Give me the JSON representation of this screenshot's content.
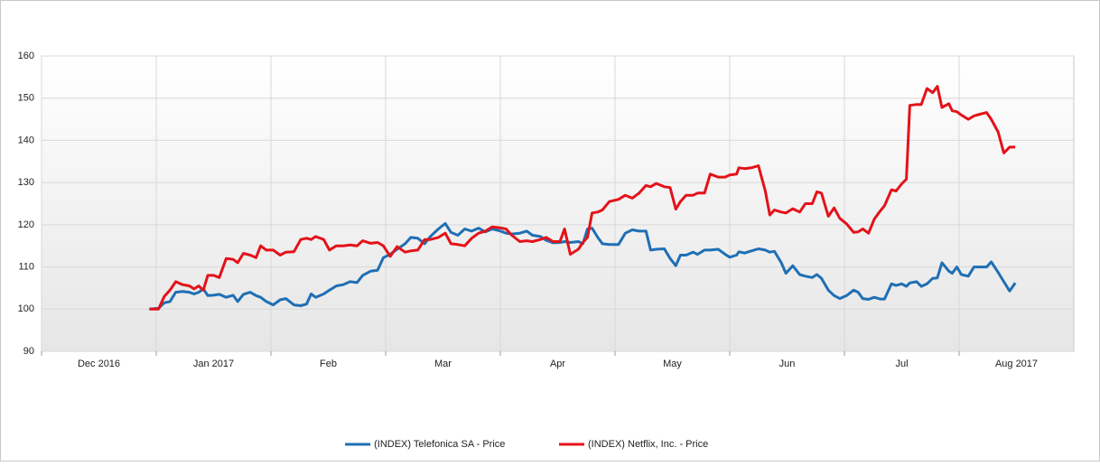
{
  "chart_data": {
    "type": "line",
    "x": [
      0.94,
      1.02,
      1.07,
      1.12,
      1.17,
      1.23,
      1.29,
      1.33,
      1.37,
      1.41,
      1.45,
      1.5,
      1.55,
      1.61,
      1.67,
      1.71,
      1.76,
      1.82,
      1.87,
      1.91,
      1.96,
      2.02,
      2.08,
      2.13,
      2.2,
      2.26,
      2.31,
      2.35,
      2.39,
      2.46,
      2.51,
      2.57,
      2.63,
      2.69,
      2.75,
      2.8,
      2.87,
      2.93,
      2.98,
      3.04,
      3.1,
      3.17,
      3.22,
      3.28,
      3.34,
      3.39,
      3.46,
      3.52,
      3.57,
      3.63,
      3.69,
      3.75,
      3.81,
      3.87,
      3.93,
      3.99,
      4.05,
      4.1,
      4.17,
      4.23,
      4.28,
      4.35,
      4.4,
      4.46,
      4.52,
      4.56,
      4.61,
      4.68,
      4.72,
      4.76,
      4.8,
      4.85,
      4.89,
      4.95,
      5.03,
      5.09,
      5.15,
      5.21,
      5.27,
      5.31,
      5.36,
      5.43,
      5.48,
      5.53,
      5.57,
      5.62,
      5.68,
      5.72,
      5.78,
      5.83,
      5.9,
      5.96,
      6.0,
      6.06,
      6.08,
      6.13,
      6.19,
      6.25,
      6.31,
      6.35,
      6.39,
      6.45,
      6.49,
      6.55,
      6.61,
      6.66,
      6.72,
      6.76,
      6.8,
      6.86,
      6.91,
      6.96,
      7.02,
      7.08,
      7.12,
      7.16,
      7.21,
      7.26,
      7.31,
      7.35,
      7.41,
      7.45,
      7.5,
      7.54,
      7.57,
      7.63,
      7.67,
      7.72,
      7.77,
      7.81,
      7.85,
      7.91,
      7.94,
      7.98,
      8.02,
      8.08,
      8.13,
      8.18,
      8.24,
      8.28,
      8.34,
      8.39,
      8.44,
      8.49
    ],
    "series": [
      {
        "name": "(INDEX) Telefonica SA - Price",
        "color": "#1f6fb4",
        "values": [
          100,
          100.2,
          101.5,
          101.8,
          104,
          104.2,
          104,
          103.6,
          104,
          104.8,
          103.2,
          103.3,
          103.5,
          102.8,
          103.3,
          101.8,
          103.5,
          104,
          103.2,
          102.8,
          101.8,
          101,
          102.2,
          102.5,
          101,
          100.8,
          101.2,
          103.6,
          102.8,
          103.6,
          104.5,
          105.5,
          105.8,
          106.5,
          106.3,
          108,
          109,
          109.2,
          112.2,
          113,
          114.2,
          115.5,
          117,
          116.8,
          115.5,
          117.2,
          119,
          120.3,
          118.2,
          117.5,
          119,
          118.5,
          119.2,
          118.3,
          119,
          118.6,
          118,
          117.8,
          118,
          118.5,
          117.5,
          117.2,
          116.3,
          115.7,
          115.8,
          116,
          115.8,
          116,
          115.5,
          119,
          119.2,
          117,
          115.5,
          115.3,
          115.3,
          118,
          118.8,
          118.5,
          118.5,
          114,
          114.2,
          114.3,
          112,
          110.3,
          112.8,
          112.8,
          113.5,
          113,
          114,
          114,
          114.2,
          113,
          112.3,
          112.8,
          113.6,
          113.3,
          113.8,
          114.3,
          114,
          113.5,
          113.7,
          111,
          108.5,
          110.3,
          108.2,
          107.8,
          107.5,
          108.2,
          107.3,
          104.5,
          103.2,
          102.5,
          103.2,
          104.5,
          104,
          102.5,
          102.3,
          102.8,
          102.4,
          102.4,
          106,
          105.6,
          106,
          105.4,
          106.2,
          106.5,
          105.4,
          106,
          107.3,
          107.4,
          111,
          109,
          108.5,
          110,
          108.2,
          107.8,
          110,
          110,
          110,
          111.2,
          108.7,
          106.5,
          104.3,
          106.2
        ]
      },
      {
        "name": "(INDEX) Netflix, Inc. - Price",
        "color": "#e41219",
        "values": [
          100,
          100,
          103,
          104.5,
          106.5,
          105.8,
          105.5,
          104.8,
          105.5,
          104.5,
          108,
          108,
          107.5,
          112,
          111.8,
          111,
          113.2,
          112.8,
          112.2,
          115,
          114,
          114,
          112.8,
          113.5,
          113.6,
          116.5,
          116.8,
          116.5,
          117.2,
          116.5,
          114,
          115,
          115,
          115.2,
          115,
          116.2,
          115.6,
          115.8,
          115,
          112.5,
          114.8,
          113.5,
          113.8,
          114,
          116.5,
          116.5,
          117,
          118,
          115.5,
          115.3,
          115,
          116.8,
          118,
          118.5,
          119.5,
          119.3,
          119,
          117.5,
          116,
          116.2,
          116,
          116.5,
          117,
          116,
          116,
          119,
          113,
          114.2,
          115.8,
          117,
          122.8,
          123,
          123.5,
          125.5,
          126,
          127,
          126.3,
          127.5,
          129.3,
          129,
          129.8,
          129,
          128.8,
          123.7,
          125.5,
          127,
          127,
          127.5,
          127.5,
          132,
          131.3,
          131.3,
          131.8,
          132,
          133.5,
          133.3,
          133.5,
          134,
          128,
          122.3,
          123.5,
          123,
          122.8,
          123.8,
          123,
          125,
          125,
          127.8,
          127.5,
          122,
          124,
          121.5,
          120.2,
          118.2,
          118.3,
          119,
          118,
          121.3,
          123.2,
          124.5,
          128.3,
          128,
          129.7,
          130.8,
          148.3,
          148.5,
          148.5,
          152.3,
          151.3,
          152.8,
          147.8,
          148.7,
          147,
          146.8,
          146,
          145,
          145.8,
          146.2,
          146.6,
          145,
          142,
          137,
          138.4,
          138.4
        ]
      }
    ],
    "xlim": [
      0,
      9
    ],
    "xticks": [
      {
        "value": 0,
        "label": "Dec 2016"
      },
      {
        "value": 1,
        "label": "Jan 2017"
      },
      {
        "value": 2,
        "label": "Feb"
      },
      {
        "value": 3,
        "label": "Mar"
      },
      {
        "value": 4,
        "label": "Apr"
      },
      {
        "value": 5,
        "label": "May"
      },
      {
        "value": 6,
        "label": "Jun"
      },
      {
        "value": 7,
        "label": "Jul"
      },
      {
        "value": 8,
        "label": "Aug 2017"
      }
    ],
    "ylim": [
      90,
      160
    ],
    "yticks": [
      90,
      100,
      110,
      120,
      130,
      140,
      150,
      160
    ],
    "grid": true,
    "legend": "bottom"
  }
}
